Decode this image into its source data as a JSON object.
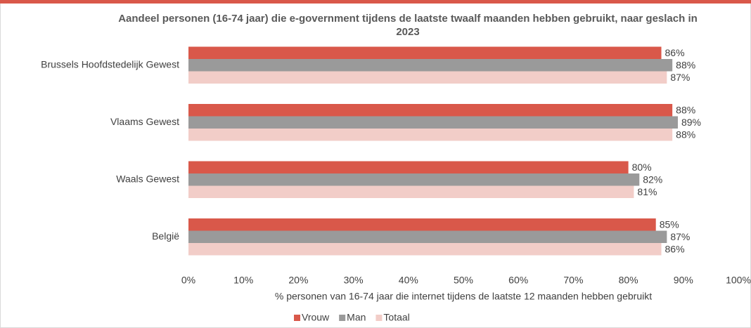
{
  "chart_data": {
    "type": "hbar",
    "title": "Aandeel personen (16-74 jaar) die e-government tijdens de laatste twaalf maanden hebben gebruikt, naar geslach in 2023",
    "x_label": "% personen van 16-74 jaar die internet tijdens de laatste 12 maanden hebben gebruikt",
    "categories": [
      "Brussels Hoofdstedelijk Gewest",
      "Vlaams Gewest",
      "Waals Gewest",
      "België"
    ],
    "series": [
      {
        "name": "Vrouw",
        "color": "#d9584a",
        "values": [
          86,
          88,
          80,
          85
        ],
        "value_labels": [
          "86%",
          "88%",
          "80%",
          "85%"
        ]
      },
      {
        "name": "Man",
        "color": "#9a9a9a",
        "values": [
          88,
          89,
          82,
          87
        ],
        "value_labels": [
          "88%",
          "89%",
          "82%",
          "87%"
        ]
      },
      {
        "name": "Totaal",
        "color": "#f2cdc8",
        "values": [
          87,
          88,
          81,
          86
        ],
        "value_labels": [
          "87%",
          "88%",
          "81%",
          "86%"
        ]
      }
    ],
    "xlim": [
      0,
      100
    ],
    "xticks": [
      {
        "value": 0,
        "label": "0%"
      },
      {
        "value": 10,
        "label": "10%"
      },
      {
        "value": 20,
        "label": "20%"
      },
      {
        "value": 30,
        "label": "30%"
      },
      {
        "value": 40,
        "label": "40%"
      },
      {
        "value": 50,
        "label": "50%"
      },
      {
        "value": 60,
        "label": "60%"
      },
      {
        "value": 70,
        "label": "70%"
      },
      {
        "value": 80,
        "label": "80%"
      },
      {
        "value": 90,
        "label": "90%"
      },
      {
        "value": 100,
        "label": "100%"
      }
    ],
    "grid": false,
    "legend": "bottom"
  }
}
